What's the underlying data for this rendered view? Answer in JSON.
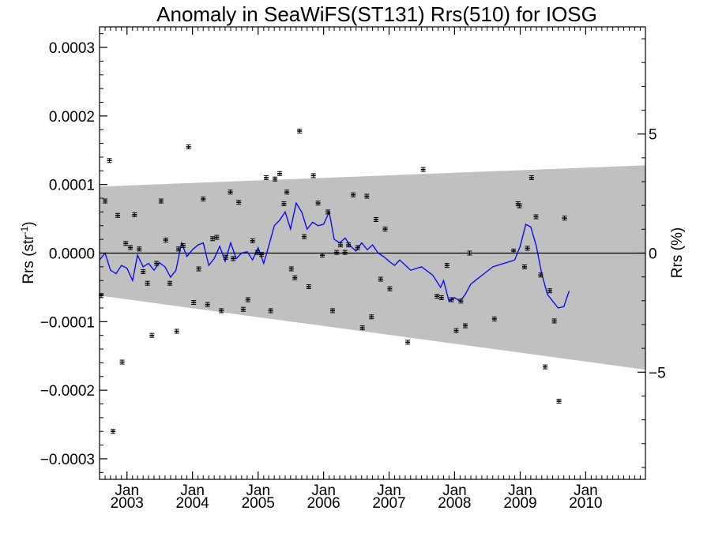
{
  "chart_data": {
    "type": "scatter",
    "title": "Anomaly in SeaWiFS(ST131) Rrs(510) for IOSG",
    "ylabel": "Rrs (str",
    "ylabel_sup": "-1",
    "ylabel_tail": ")",
    "y2label": "Rrs (%)",
    "xlim": [
      "2002-08-01",
      "2010-11-30"
    ],
    "ylim": [
      -0.00033,
      0.00033
    ],
    "y2lim": [
      -9.5,
      9.5
    ],
    "yticks": [
      {
        "value": -0.0003,
        "label": "−0.0003"
      },
      {
        "value": -0.0002,
        "label": "−0.0002"
      },
      {
        "value": -0.0001,
        "label": "−0.0001"
      },
      {
        "value": 0,
        "label": "0.0000"
      },
      {
        "value": 0.0001,
        "label": "0.0001"
      },
      {
        "value": 0.0002,
        "label": "0.0002"
      },
      {
        "value": 0.0003,
        "label": "0.0003"
      }
    ],
    "y2ticks": [
      {
        "value": -5,
        "label": "−5"
      },
      {
        "value": 0,
        "label": "0"
      },
      {
        "value": 5,
        "label": "5"
      }
    ],
    "xticks": [
      {
        "date": "2003-01-01",
        "label": "Jan",
        "year": "2003"
      },
      {
        "date": "2004-01-01",
        "label": "Jan",
        "year": "2004"
      },
      {
        "date": "2005-01-01",
        "label": "Jan",
        "year": "2005"
      },
      {
        "date": "2006-01-01",
        "label": "Jan",
        "year": "2006"
      },
      {
        "date": "2007-01-01",
        "label": "Jan",
        "year": "2007"
      },
      {
        "date": "2008-01-01",
        "label": "Jan",
        "year": "2008"
      },
      {
        "date": "2009-01-01",
        "label": "Jan",
        "year": "2009"
      },
      {
        "date": "2010-01-01",
        "label": "Jan",
        "year": "2010"
      }
    ],
    "band": {
      "start": "2002-08-01",
      "end": "2010-11-30",
      "upper": [
        9.7e-05,
        0.000128
      ],
      "lower": [
        -6.2e-05,
        -0.00017
      ]
    },
    "zero_line": 0,
    "colors": {
      "band": "#c0c0c0",
      "line": "#0000ff",
      "points": "#000000"
    },
    "points": [
      {
        "x": "2002-08-10",
        "y": -6.2e-05
      },
      {
        "x": "2002-09-01",
        "y": 7.6e-05
      },
      {
        "x": "2002-09-25",
        "y": 0.000135
      },
      {
        "x": "2002-10-15",
        "y": -0.00026
      },
      {
        "x": "2002-11-10",
        "y": 5.5e-05
      },
      {
        "x": "2002-12-05",
        "y": -0.000159
      },
      {
        "x": "2002-12-25",
        "y": 1.4e-05
      },
      {
        "x": "2003-01-20",
        "y": 8e-06
      },
      {
        "x": "2003-02-12",
        "y": 5.6e-05
      },
      {
        "x": "2003-03-10",
        "y": 6e-06
      },
      {
        "x": "2003-04-01",
        "y": -2.7e-05
      },
      {
        "x": "2003-04-25",
        "y": -4.4e-05
      },
      {
        "x": "2003-05-20",
        "y": -0.00012
      },
      {
        "x": "2003-06-15",
        "y": -1.5e-05
      },
      {
        "x": "2003-07-10",
        "y": 7.6e-05
      },
      {
        "x": "2003-08-05",
        "y": 1.9e-05
      },
      {
        "x": "2003-08-28",
        "y": -4.4e-05
      },
      {
        "x": "2003-10-05",
        "y": -0.000114
      },
      {
        "x": "2003-10-15",
        "y": 6e-06
      },
      {
        "x": "2003-11-10",
        "y": 1.1e-05
      },
      {
        "x": "2003-12-10",
        "y": 0.000155
      },
      {
        "x": "2004-01-08",
        "y": -7.2e-05
      },
      {
        "x": "2004-02-05",
        "y": -2.3e-05
      },
      {
        "x": "2004-03-01",
        "y": 7.9e-05
      },
      {
        "x": "2004-03-25",
        "y": -7.5e-05
      },
      {
        "x": "2004-04-22",
        "y": 2.1e-05
      },
      {
        "x": "2004-05-15",
        "y": 2.3e-05
      },
      {
        "x": "2004-06-10",
        "y": -8.4e-05
      },
      {
        "x": "2004-07-05",
        "y": -6e-06
      },
      {
        "x": "2004-07-30",
        "y": 8.9e-05
      },
      {
        "x": "2004-08-15",
        "y": -8e-06
      },
      {
        "x": "2004-09-15",
        "y": 7.4e-05
      },
      {
        "x": "2004-10-10",
        "y": -8.2e-05
      },
      {
        "x": "2004-11-05",
        "y": -6.8e-05
      },
      {
        "x": "2004-12-01",
        "y": 1.8e-05
      },
      {
        "x": "2004-12-28",
        "y": 1e-06
      },
      {
        "x": "2005-01-20",
        "y": -2e-06
      },
      {
        "x": "2005-02-15",
        "y": 0.00011
      },
      {
        "x": "2005-03-12",
        "y": -8.4e-05
      },
      {
        "x": "2005-04-05",
        "y": 0.000108
      },
      {
        "x": "2005-05-01",
        "y": 0.000116
      },
      {
        "x": "2005-05-25",
        "y": 7.2e-05
      },
      {
        "x": "2005-06-10",
        "y": 8.9e-05
      },
      {
        "x": "2005-07-05",
        "y": -2.3e-05
      },
      {
        "x": "2005-07-25",
        "y": -3.6e-05
      },
      {
        "x": "2005-08-20",
        "y": 0.000178
      },
      {
        "x": "2005-09-15",
        "y": 2.4e-05
      },
      {
        "x": "2005-10-10",
        "y": -4.9e-05
      },
      {
        "x": "2005-11-05",
        "y": 0.000113
      },
      {
        "x": "2005-12-01",
        "y": 7.3e-05
      },
      {
        "x": "2005-12-25",
        "y": -3e-06
      },
      {
        "x": "2006-01-25",
        "y": 6e-05
      },
      {
        "x": "2006-02-20",
        "y": -8.4e-05
      },
      {
        "x": "2006-03-15",
        "y": 1e-06
      },
      {
        "x": "2006-04-05",
        "y": 1.2e-05
      },
      {
        "x": "2006-04-30",
        "y": 1e-06
      },
      {
        "x": "2006-05-20",
        "y": 1.2e-05
      },
      {
        "x": "2006-06-15",
        "y": 8.5e-05
      },
      {
        "x": "2006-07-10",
        "y": 8e-06
      },
      {
        "x": "2006-08-05",
        "y": -0.000109
      },
      {
        "x": "2006-08-30",
        "y": 8.3e-05
      },
      {
        "x": "2006-09-25",
        "y": -9.3e-05
      },
      {
        "x": "2006-10-20",
        "y": 4.9e-05
      },
      {
        "x": "2006-11-15",
        "y": -3.8e-05
      },
      {
        "x": "2006-12-10",
        "y": 3.5e-05
      },
      {
        "x": "2007-01-05",
        "y": -5.2e-05
      },
      {
        "x": "2007-04-15",
        "y": -0.00013
      },
      {
        "x": "2007-07-10",
        "y": 0.000122
      },
      {
        "x": "2007-09-25",
        "y": -6.3e-05
      },
      {
        "x": "2007-10-20",
        "y": -6.5e-05
      },
      {
        "x": "2007-11-20",
        "y": -1.8e-05
      },
      {
        "x": "2007-12-15",
        "y": -6.8e-05
      },
      {
        "x": "2008-01-10",
        "y": -0.000113
      },
      {
        "x": "2008-02-05",
        "y": -7e-05
      },
      {
        "x": "2008-03-01",
        "y": -0.000106
      },
      {
        "x": "2008-03-25",
        "y": 0.0
      },
      {
        "x": "2008-08-10",
        "y": -9.6e-05
      },
      {
        "x": "2008-11-25",
        "y": 3e-06
      },
      {
        "x": "2008-12-20",
        "y": 7.2e-05
      },
      {
        "x": "2008-12-28",
        "y": 6.9e-05
      },
      {
        "x": "2009-01-25",
        "y": -2e-05
      },
      {
        "x": "2009-02-10",
        "y": 7e-06
      },
      {
        "x": "2009-03-05",
        "y": 0.00011
      },
      {
        "x": "2009-03-30",
        "y": 5.3e-05
      },
      {
        "x": "2009-04-25",
        "y": -3.2e-05
      },
      {
        "x": "2009-05-20",
        "y": -0.000166
      },
      {
        "x": "2009-06-15",
        "y": -5.5e-05
      },
      {
        "x": "2009-07-10",
        "y": -9.9e-05
      },
      {
        "x": "2009-08-05",
        "y": -0.000216
      },
      {
        "x": "2009-09-05",
        "y": 5.1e-05
      }
    ],
    "line": [
      {
        "x": "2002-08-01",
        "y": -1e-05
      },
      {
        "x": "2002-09-01",
        "y": 0.0
      },
      {
        "x": "2002-10-01",
        "y": -2.5e-05
      },
      {
        "x": "2002-11-01",
        "y": -3e-05
      },
      {
        "x": "2002-12-01",
        "y": -1.8e-05
      },
      {
        "x": "2003-01-01",
        "y": -2.2e-05
      },
      {
        "x": "2003-02-01",
        "y": -4e-05
      },
      {
        "x": "2003-03-01",
        "y": -3e-06
      },
      {
        "x": "2003-04-01",
        "y": -2e-05
      },
      {
        "x": "2003-05-01",
        "y": -1.5e-05
      },
      {
        "x": "2003-06-01",
        "y": -2.5e-05
      },
      {
        "x": "2003-07-01",
        "y": -1.4e-05
      },
      {
        "x": "2003-08-01",
        "y": -2e-05
      },
      {
        "x": "2003-09-01",
        "y": -3.5e-05
      },
      {
        "x": "2003-10-01",
        "y": -2.5e-05
      },
      {
        "x": "2003-11-01",
        "y": 1.5e-05
      },
      {
        "x": "2003-12-01",
        "y": -5e-06
      },
      {
        "x": "2004-01-01",
        "y": 5e-06
      },
      {
        "x": "2004-02-01",
        "y": 1.2e-05
      },
      {
        "x": "2004-03-01",
        "y": 1.5e-05
      },
      {
        "x": "2004-04-01",
        "y": -1.8e-05
      },
      {
        "x": "2004-05-01",
        "y": -8e-06
      },
      {
        "x": "2004-06-01",
        "y": 1e-05
      },
      {
        "x": "2004-07-01",
        "y": -1.2e-05
      },
      {
        "x": "2004-08-01",
        "y": 1.5e-05
      },
      {
        "x": "2004-09-01",
        "y": -8e-06
      },
      {
        "x": "2004-10-01",
        "y": 0.0
      },
      {
        "x": "2004-11-01",
        "y": 2e-06
      },
      {
        "x": "2004-12-01",
        "y": -1e-05
      },
      {
        "x": "2005-01-01",
        "y": 8e-06
      },
      {
        "x": "2005-02-01",
        "y": -1.5e-05
      },
      {
        "x": "2005-03-01",
        "y": 1e-05
      },
      {
        "x": "2005-04-01",
        "y": 4e-05
      },
      {
        "x": "2005-05-01",
        "y": 4.8e-05
      },
      {
        "x": "2005-06-01",
        "y": 6e-05
      },
      {
        "x": "2005-07-01",
        "y": 3.5e-05
      },
      {
        "x": "2005-08-01",
        "y": 7.3e-05
      },
      {
        "x": "2005-09-01",
        "y": 6e-05
      },
      {
        "x": "2005-10-01",
        "y": 3.5e-05
      },
      {
        "x": "2005-11-01",
        "y": 4.5e-05
      },
      {
        "x": "2005-12-01",
        "y": 4e-05
      },
      {
        "x": "2006-01-01",
        "y": 4.2e-05
      },
      {
        "x": "2006-02-01",
        "y": 6e-05
      },
      {
        "x": "2006-03-01",
        "y": 2e-05
      },
      {
        "x": "2006-04-01",
        "y": 1.5e-05
      },
      {
        "x": "2006-05-01",
        "y": 2.2e-05
      },
      {
        "x": "2006-06-01",
        "y": 1e-05
      },
      {
        "x": "2006-07-01",
        "y": 3e-06
      },
      {
        "x": "2006-08-01",
        "y": 1.5e-05
      },
      {
        "x": "2006-09-01",
        "y": 5e-06
      },
      {
        "x": "2006-10-01",
        "y": 1.2e-05
      },
      {
        "x": "2006-11-01",
        "y": 0.0
      },
      {
        "x": "2006-12-01",
        "y": -5e-06
      },
      {
        "x": "2007-01-01",
        "y": -1.2e-05
      },
      {
        "x": "2007-02-01",
        "y": -1.8e-05
      },
      {
        "x": "2007-03-01",
        "y": -1e-05
      },
      {
        "x": "2007-05-01",
        "y": -2.5e-05
      },
      {
        "x": "2007-07-01",
        "y": -2e-05
      },
      {
        "x": "2007-09-01",
        "y": -3.2e-05
      },
      {
        "x": "2007-10-15",
        "y": -5e-05
      },
      {
        "x": "2007-11-01",
        "y": -4e-05
      },
      {
        "x": "2007-12-01",
        "y": -7e-05
      },
      {
        "x": "2008-01-01",
        "y": -6.5e-05
      },
      {
        "x": "2008-02-01",
        "y": -7e-05
      },
      {
        "x": "2008-03-01",
        "y": -6e-05
      },
      {
        "x": "2008-04-01",
        "y": -4.5e-05
      },
      {
        "x": "2008-08-01",
        "y": -2e-05
      },
      {
        "x": "2008-12-01",
        "y": -1e-05
      },
      {
        "x": "2009-01-01",
        "y": 1e-05
      },
      {
        "x": "2009-02-01",
        "y": 4.2e-05
      },
      {
        "x": "2009-03-01",
        "y": 3.8e-05
      },
      {
        "x": "2009-04-01",
        "y": 1e-05
      },
      {
        "x": "2009-05-01",
        "y": -3e-05
      },
      {
        "x": "2009-06-01",
        "y": -6e-05
      },
      {
        "x": "2009-07-01",
        "y": -7e-05
      },
      {
        "x": "2009-08-01",
        "y": -8e-05
      },
      {
        "x": "2009-09-01",
        "y": -7.8e-05
      },
      {
        "x": "2009-10-01",
        "y": -5.5e-05
      }
    ]
  }
}
